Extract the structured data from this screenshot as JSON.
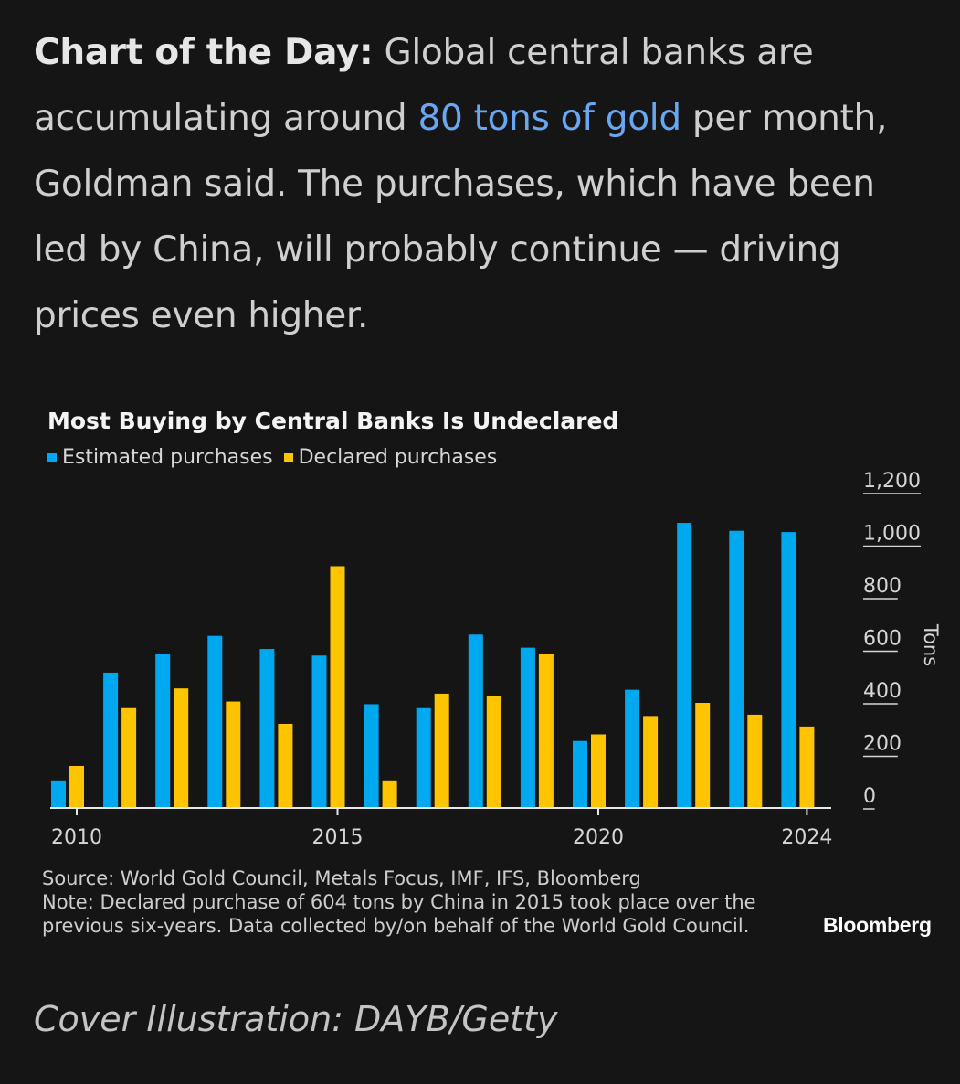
{
  "intro": {
    "lead": "Chart of the Day:",
    "text_before_link": " Global central banks are accumulating around ",
    "link": "80 tons of gold",
    "text_after_link": " per month, Goldman said. The purchases, which have been led by China, will probably continue — driving prices even higher."
  },
  "chart_data": {
    "type": "bar",
    "title": "Most Buying by Central Banks Is Undeclared",
    "categories": [
      "2010",
      "2011",
      "2012",
      "2013",
      "2014",
      "2015",
      "2016",
      "2017",
      "2018",
      "2019",
      "2020",
      "2021",
      "2022",
      "2023",
      "2024"
    ],
    "series": [
      {
        "name": "Estimated purchases",
        "color": "#00a8f0",
        "values": [
          105,
          515,
          585,
          655,
          605,
          580,
          395,
          380,
          660,
          610,
          255,
          450,
          1085,
          1055,
          1050
        ]
      },
      {
        "name": "Declared purchases",
        "color": "#ffc400",
        "values": [
          160,
          380,
          455,
          405,
          320,
          920,
          105,
          435,
          425,
          585,
          280,
          350,
          400,
          355,
          310
        ]
      }
    ],
    "x_tick_labels": [
      "2010",
      "2015",
      "2020",
      "2024"
    ],
    "y_tick_labels": [
      "0",
      "200",
      "400",
      "600",
      "800",
      "1,000",
      "1,200"
    ],
    "ylabel": "Tons",
    "ylim": [
      0,
      1200
    ],
    "y_axis_side": "right",
    "grid": false,
    "legend_position": "top-left"
  },
  "footer": {
    "source": "Source: World Gold Council, Metals Focus, IMF, IFS, Bloomberg",
    "note_line1": "Note: Declared purchase of 604 tons by China in 2015 took place over the",
    "note_line2": "previous six-years. Data collected by/on behalf of the World Gold Council.",
    "brand": "Bloomberg"
  },
  "credit": "Cover Illustration: DAYB/Getty"
}
